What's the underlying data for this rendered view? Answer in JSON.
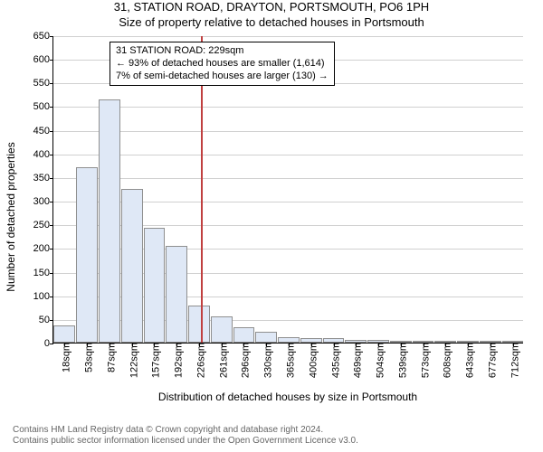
{
  "header": {
    "title": "31, STATION ROAD, DRAYTON, PORTSMOUTH, PO6 1PH",
    "subtitle": "Size of property relative to detached houses in Portsmouth"
  },
  "chart": {
    "type": "histogram",
    "ylabel": "Number of detached properties",
    "xlabel": "Distribution of detached houses by size in Portsmouth",
    "ylim": [
      0,
      650
    ],
    "ytick_step": 50,
    "yticks": [
      0,
      50,
      100,
      150,
      200,
      250,
      300,
      350,
      400,
      450,
      500,
      550,
      600,
      650
    ],
    "xticks": [
      "18sqm",
      "53sqm",
      "87sqm",
      "122sqm",
      "157sqm",
      "192sqm",
      "226sqm",
      "261sqm",
      "296sqm",
      "330sqm",
      "365sqm",
      "400sqm",
      "435sqm",
      "469sqm",
      "504sqm",
      "539sqm",
      "573sqm",
      "608sqm",
      "643sqm",
      "677sqm",
      "712sqm"
    ],
    "bars": [
      36,
      370,
      515,
      325,
      243,
      205,
      78,
      55,
      32,
      23,
      12,
      10,
      10,
      5,
      5,
      4,
      2,
      2,
      2,
      2,
      1
    ],
    "bar_fill": "#dfe8f6",
    "bar_border": "#8f8f8f",
    "background_color": "#ffffff",
    "grid_color": "#d0d0d0",
    "marker_line": {
      "x_sqm": 229,
      "color": "#c04040"
    },
    "annotation": {
      "line1": "31 STATION ROAD: 229sqm",
      "line2": "← 93% of detached houses are smaller (1,614)",
      "line3": "7% of semi-detached houses are larger (130) →"
    },
    "fontsize_axis": 11,
    "fontsize_label": 12,
    "fontsize_title": 13
  },
  "footer": {
    "line1": "Contains HM Land Registry data © Crown copyright and database right 2024.",
    "line2": "Contains public sector information licensed under the Open Government Licence v3.0."
  }
}
